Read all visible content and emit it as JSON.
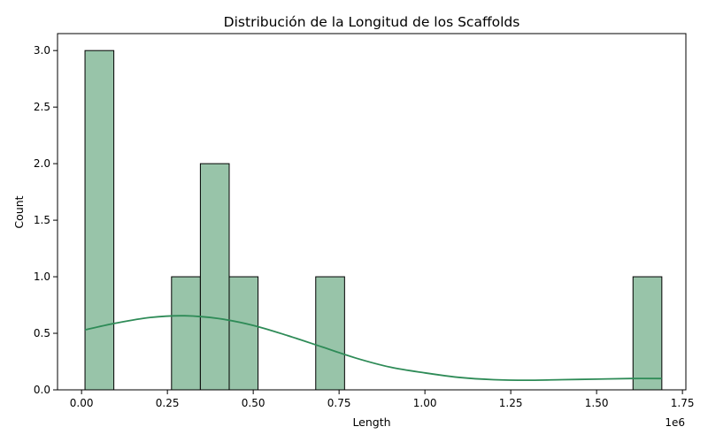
{
  "chart_data": {
    "type": "bar",
    "title": "Distribución de la Longitud de los Scaffolds",
    "xlabel": "Length",
    "ylabel": "Count",
    "x_offset_label": "1e6",
    "xlim": [
      -0.07,
      1.76
    ],
    "ylim": [
      0,
      3.15
    ],
    "grid": false,
    "bin_edges": [
      0.01,
      0.094,
      0.178,
      0.262,
      0.346,
      0.43,
      0.514,
      0.598,
      0.682,
      0.766,
      0.85,
      0.934,
      1.018,
      1.102,
      1.186,
      1.27,
      1.354,
      1.438,
      1.522,
      1.606,
      1.69
    ],
    "counts": [
      3,
      0,
      0,
      1,
      2,
      1,
      0,
      0,
      1,
      0,
      0,
      0,
      0,
      0,
      0,
      0,
      0,
      0,
      0,
      1
    ],
    "x_ticks": [
      0.0,
      0.25,
      0.5,
      0.75,
      1.0,
      1.25,
      1.5,
      1.75
    ],
    "x_tick_labels": [
      "0.00",
      "0.25",
      "0.50",
      "0.75",
      "1.00",
      "1.25",
      "1.50",
      "1.75"
    ],
    "y_ticks": [
      0.0,
      0.5,
      1.0,
      1.5,
      2.0,
      2.5,
      3.0
    ],
    "y_tick_labels": [
      "0.0",
      "0.5",
      "1.0",
      "1.5",
      "2.0",
      "2.5",
      "3.0"
    ],
    "kde": {
      "x": [
        0.01,
        0.1,
        0.2,
        0.3,
        0.4,
        0.5,
        0.6,
        0.7,
        0.8,
        0.9,
        1.0,
        1.1,
        1.2,
        1.3,
        1.4,
        1.5,
        1.6,
        1.69
      ],
      "y": [
        0.53,
        0.59,
        0.64,
        0.655,
        0.63,
        0.57,
        0.48,
        0.38,
        0.28,
        0.2,
        0.15,
        0.11,
        0.09,
        0.085,
        0.09,
        0.095,
        0.1,
        0.1
      ]
    },
    "colors": {
      "bar_fill": "#98c4a9",
      "bar_edge": "#000000",
      "kde_line": "#2e8b57"
    }
  }
}
